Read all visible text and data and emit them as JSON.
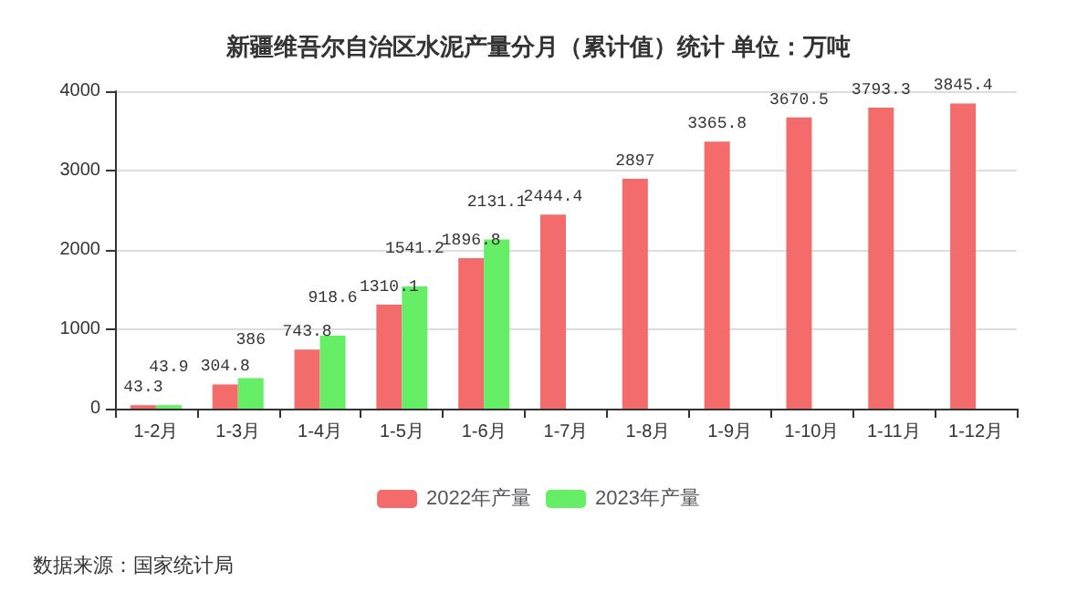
{
  "chart_data": {
    "type": "bar",
    "title": "新疆维吾尔自治区水泥产量分月（累计值）统计 单位：万吨",
    "categories": [
      "1-2月",
      "1-3月",
      "1-4月",
      "1-5月",
      "1-6月",
      "1-7月",
      "1-8月",
      "1-9月",
      "1-10月",
      "1-11月",
      "1-12月"
    ],
    "series": [
      {
        "name": "2022年产量",
        "color": "#f46b6b",
        "values": [
          43.3,
          304.8,
          743.8,
          1310.1,
          1896.8,
          2444.4,
          2897,
          3365.8,
          3670.5,
          3793.3,
          3845.4
        ]
      },
      {
        "name": "2023年产量",
        "color": "#66ee66",
        "values": [
          43.9,
          386,
          918.6,
          1541.2,
          2131.1,
          null,
          null,
          null,
          null,
          null,
          null
        ]
      }
    ],
    "ylim": [
      0,
      4000
    ],
    "yticks": [
      0,
      1000,
      2000,
      3000,
      4000
    ],
    "grid": "y",
    "legend": "bottom",
    "data_labels": true,
    "annotations": [
      "数据来源：国家统计局"
    ]
  }
}
